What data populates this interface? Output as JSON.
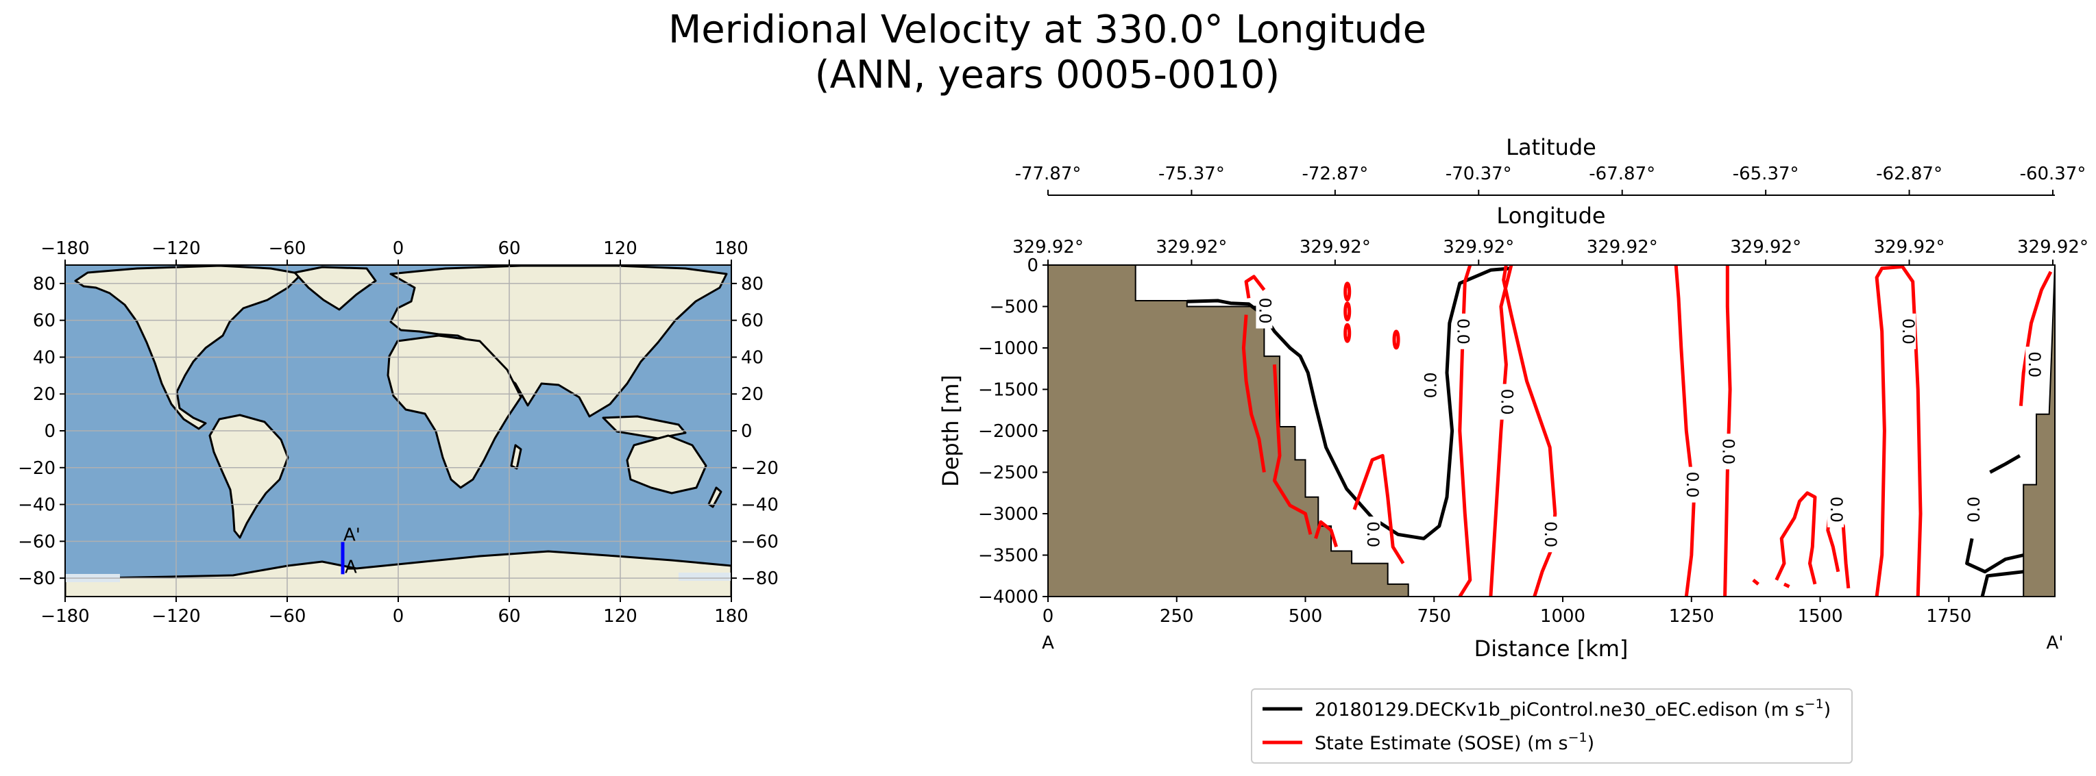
{
  "figure": {
    "title_line1": "Meridional Velocity at 330.0° Longitude",
    "title_line2": "(ANN, years 0005-0010)"
  },
  "colors": {
    "ocean": "#7ba7cd",
    "land": "#efedd9",
    "sea_ice": "#dde7ef",
    "section_line": "#0000ff",
    "bathymetry": "#8f8062",
    "model_contour": "#000000",
    "obs_contour": "#ff0000"
  },
  "chart_data": [
    {
      "type": "map",
      "projection": "PlateCarree",
      "xticks": [
        -180,
        -120,
        -60,
        0,
        60,
        120,
        180
      ],
      "yticks": [
        80,
        60,
        40,
        20,
        0,
        -20,
        -40,
        -60,
        -80
      ],
      "xlim": [
        -180,
        180
      ],
      "ylim": [
        -90,
        90
      ],
      "grid": true,
      "section": {
        "lon": 330.0,
        "start_label": "A",
        "end_label": "A'",
        "lat_start": -77.87,
        "lat_end": -60.37
      }
    },
    {
      "type": "contour",
      "title": "",
      "xlabel": "Distance [km]",
      "ylabel": "Depth [m]",
      "xlim": [
        0,
        1956
      ],
      "ylim": [
        -4000,
        0
      ],
      "xticks": [
        0,
        250,
        500,
        750,
        1000,
        1250,
        1500,
        1750
      ],
      "yticks": [
        0,
        -500,
        -1000,
        -1500,
        -2000,
        -2500,
        -3000,
        -3500,
        -4000
      ],
      "start_label": "A",
      "end_label": "A'",
      "lat_axis_label": "Latitude",
      "lat_ticks": [
        "-77.87°",
        "-75.37°",
        "-72.87°",
        "-70.37°",
        "-67.87°",
        "-65.37°",
        "-62.87°",
        "-60.37°"
      ],
      "lon_axis_label": "Longitude",
      "lon_ticks": [
        "329.92°",
        "329.92°",
        "329.92°",
        "329.92°",
        "329.92°",
        "329.92°",
        "329.92°",
        "329.92°"
      ],
      "contour_level": 0.0,
      "contour_labels": [
        {
          "series": "model",
          "text": "0.0",
          "x": 745,
          "depth": -1450
        },
        {
          "series": "model",
          "text": "0.0",
          "x": 1800,
          "depth": -2950
        },
        {
          "series": "obs",
          "text": "0.0",
          "x": 420,
          "depth": -550
        },
        {
          "series": "obs",
          "text": "0.0",
          "x": 805,
          "depth": -800
        },
        {
          "series": "obs",
          "text": "0.0",
          "x": 890,
          "depth": -1650
        },
        {
          "series": "obs",
          "text": "0.0",
          "x": 975,
          "depth": -3250
        },
        {
          "series": "obs",
          "text": "0.0",
          "x": 1250,
          "depth": -2650
        },
        {
          "series": "obs",
          "text": "0.0",
          "x": 1320,
          "depth": -2250
        },
        {
          "series": "obs",
          "text": "0.0",
          "x": 1530,
          "depth": -2950
        },
        {
          "series": "obs",
          "text": "0.0",
          "x": 1670,
          "depth": -800
        },
        {
          "series": "obs",
          "text": "0.0",
          "x": 1915,
          "depth": -1200
        },
        {
          "series": "obs",
          "text": "0.0",
          "x": 630,
          "depth": -3250
        }
      ],
      "legend": {
        "position": "below",
        "entries": [
          {
            "name": "20180129.DECKv1b_piControl.ne30_oEC.edison (m s",
            "sup": "−1",
            "close": ")",
            "color": "#000000"
          },
          {
            "name": "State Estimate (SOSE) (m s",
            "sup": "−1",
            "close": ")",
            "color": "#ff0000"
          }
        ]
      }
    }
  ]
}
